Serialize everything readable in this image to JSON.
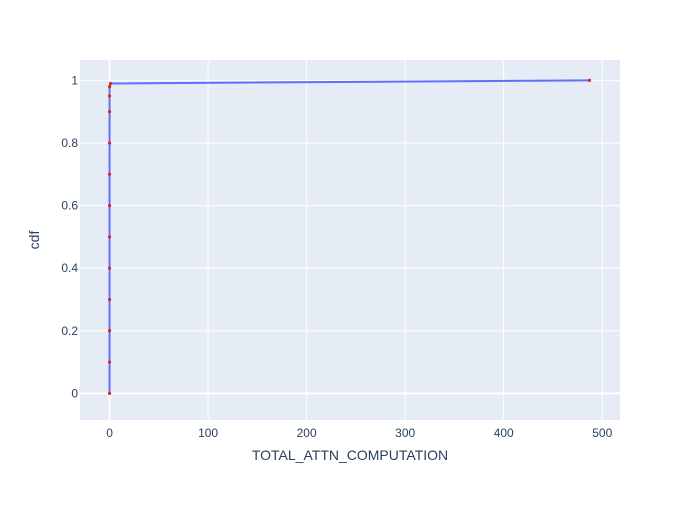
{
  "chart_data": {
    "type": "line",
    "title": "",
    "xlabel": "TOTAL_ATTN_COMPUTATION",
    "ylabel": "cdf",
    "xlim": [
      -30,
      518
    ],
    "ylim": [
      -0.085,
      1.065
    ],
    "x_ticks": [
      0,
      100,
      200,
      300,
      400,
      500
    ],
    "x_tick_labels": [
      "0",
      "100",
      "200",
      "300",
      "400",
      "500"
    ],
    "y_ticks": [
      0,
      0.2,
      0.4,
      0.6,
      0.8,
      1
    ],
    "y_tick_labels": [
      "0",
      "0.2",
      "0.4",
      "0.6",
      "0.8",
      "1"
    ],
    "grid": true,
    "legend": "none",
    "colors": {
      "plot_background": "#e5ecf6",
      "grid": "#ffffff",
      "text": "#2a3f5f",
      "trace": "#636efa",
      "markers": "#d62728"
    },
    "series": [
      {
        "x": [
          0,
          0,
          0,
          0,
          0,
          0,
          0,
          0,
          0,
          0,
          0,
          0,
          1,
          487
        ],
        "y": [
          0,
          0.1,
          0.2,
          0.3,
          0.4,
          0.5,
          0.6,
          0.7,
          0.8,
          0.9,
          0.95,
          0.98,
          0.99,
          1.0
        ]
      }
    ]
  }
}
